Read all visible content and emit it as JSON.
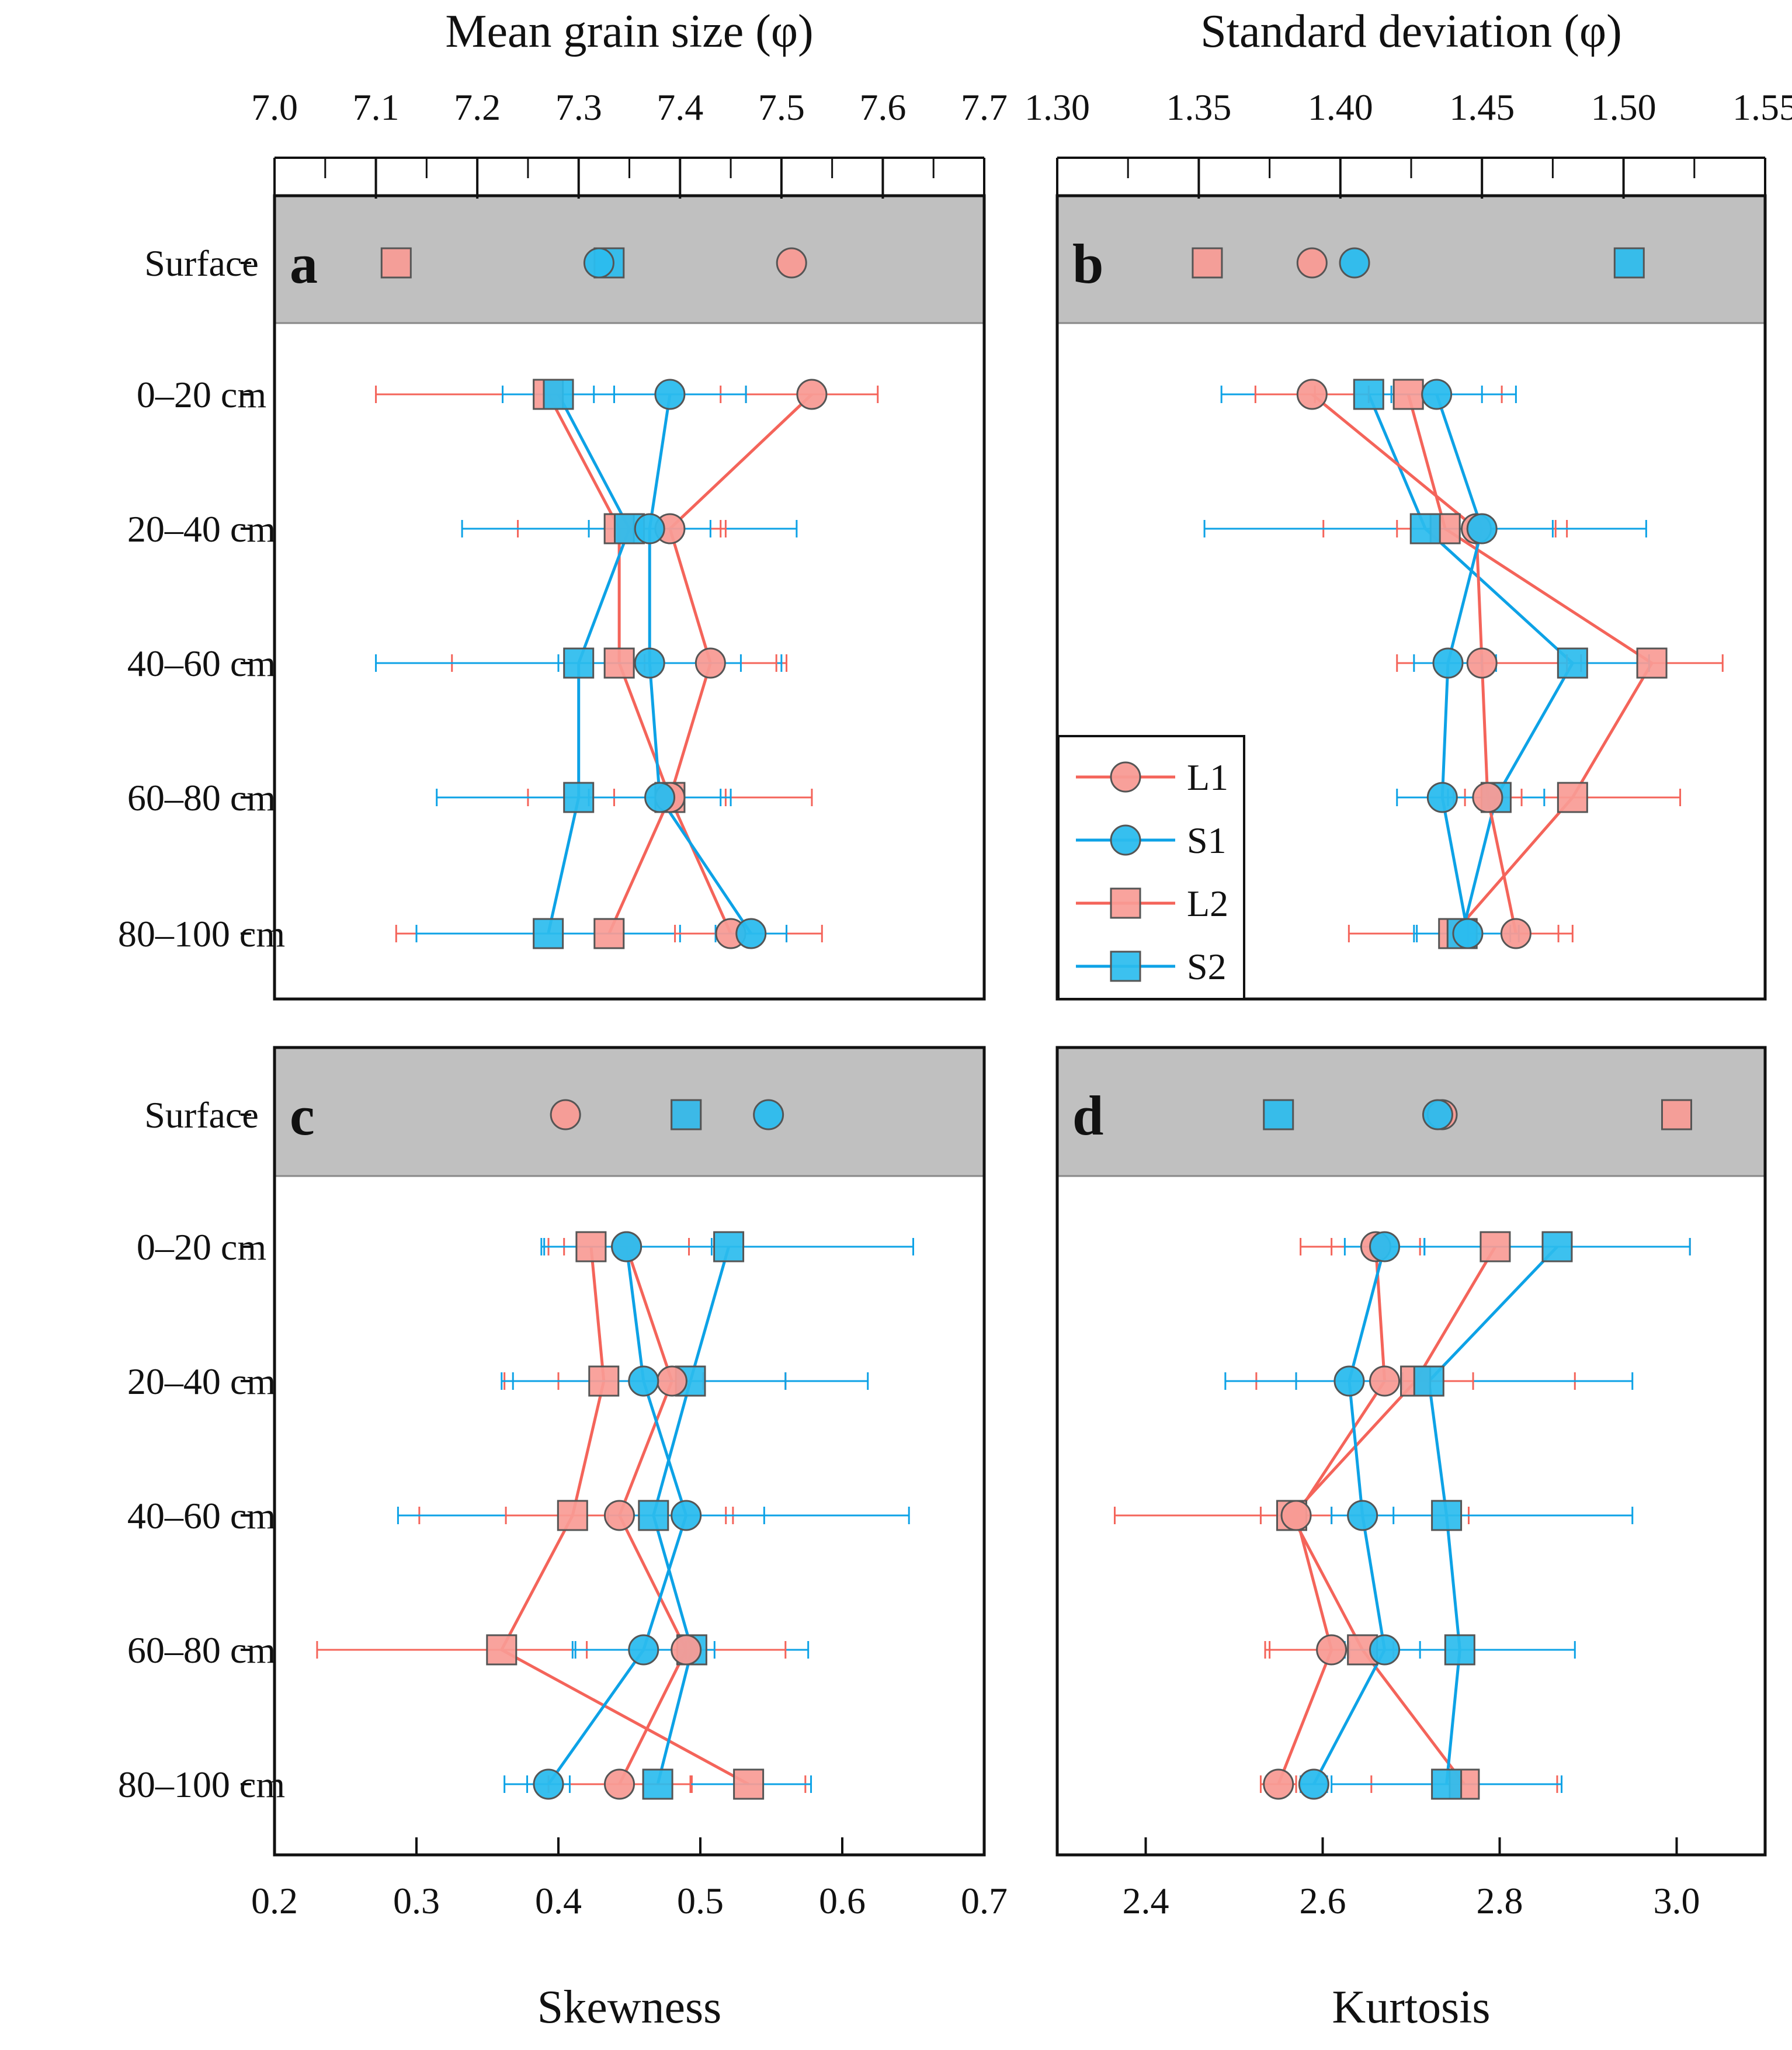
{
  "depth_labels": [
    "Surface",
    "0–20 cm",
    "20–40 cm",
    "40–60 cm",
    "60–80 cm",
    "80–100 cm"
  ],
  "colors": {
    "L": "#f4645a",
    "S": "#0da2e6",
    "L_fill": "#f89b95",
    "S_fill": "#2bbcee",
    "band": "#c0c0c0"
  },
  "legend": [
    {
      "name": "L1",
      "marker": "circle",
      "group": "L"
    },
    {
      "name": "S1",
      "marker": "circle",
      "group": "S"
    },
    {
      "name": "L2",
      "marker": "square",
      "group": "L"
    },
    {
      "name": "S2",
      "marker": "square",
      "group": "S"
    }
  ],
  "chart_data": [
    {
      "type": "line",
      "panel": "a",
      "xlabel": "Mean grain size (φ)",
      "axis_position": "top",
      "xlim": [
        7.0,
        7.7
      ],
      "xticks": [
        "7.0",
        "7.1",
        "7.2",
        "7.3",
        "7.4",
        "7.5",
        "7.6",
        "7.7"
      ],
      "surface": {
        "L1": 7.51,
        "S1": 7.32,
        "L2": 7.12,
        "S2": 7.33
      },
      "series": [
        {
          "name": "L1",
          "values": [
            7.53,
            7.39,
            7.43,
            7.39,
            7.45
          ],
          "err": [
            0.065,
            0.055,
            0.065,
            0.055,
            0.055
          ]
        },
        {
          "name": "S1",
          "values": [
            7.39,
            7.37,
            7.37,
            7.38,
            7.47
          ],
          "err": [
            0.075,
            0.06,
            0.09,
            0.07,
            0.035
          ]
        },
        {
          "name": "L2",
          "values": [
            7.27,
            7.34,
            7.34,
            7.39,
            7.33
          ],
          "err": [
            0.17,
            0.1,
            0.165,
            0.14,
            0.21
          ]
        },
        {
          "name": "S2",
          "values": [
            7.28,
            7.35,
            7.3,
            7.3,
            7.27
          ],
          "err": [
            0.055,
            0.165,
            0.2,
            0.14,
            0.13
          ]
        }
      ]
    },
    {
      "type": "line",
      "panel": "b",
      "xlabel": "Standard deviation (φ)",
      "axis_position": "top",
      "xlim": [
        1.3,
        1.55
      ],
      "xticks": [
        "1.30",
        "1.35",
        "1.40",
        "1.45",
        "1.50",
        "1.55"
      ],
      "surface": {
        "L1": 1.39,
        "S1": 1.405,
        "L2": 1.353,
        "S2": 1.502
      },
      "series": [
        {
          "name": "L1",
          "values": [
            1.39,
            1.448,
            1.45,
            1.452,
            1.462
          ],
          "err": [
            0.02,
            0.028,
            0.03,
            0.012,
            0.02
          ]
        },
        {
          "name": "S1",
          "values": [
            1.434,
            1.45,
            1.438,
            1.436,
            1.445
          ],
          "err": [
            0.016,
            0.025,
            0.012,
            0.016,
            0.018
          ]
        },
        {
          "name": "L2",
          "values": [
            1.424,
            1.437,
            1.51,
            1.482,
            1.44
          ],
          "err": [
            0.033,
            0.043,
            0.025,
            0.038,
            0.037
          ]
        },
        {
          "name": "S2",
          "values": [
            1.41,
            1.43,
            1.482,
            1.455,
            1.443
          ],
          "err": [
            0.052,
            0.078,
            0.027,
            0.017,
            0.017
          ]
        }
      ]
    },
    {
      "type": "line",
      "panel": "c",
      "xlabel": "Skewness",
      "axis_position": "bottom",
      "xlim": [
        0.2,
        0.7
      ],
      "xticks": [
        "0.2",
        "0.3",
        "0.4",
        "0.5",
        "0.6",
        "0.7"
      ],
      "surface": {
        "L1": 0.405,
        "S1": 0.548,
        "L2": 0.49,
        "S2": 0.49
      },
      "series": [
        {
          "name": "L1",
          "values": [
            0.448,
            0.48,
            0.443,
            0.49,
            0.443
          ],
          "err": [
            0.044,
            0.08,
            0.08,
            0.07,
            0.05
          ]
        },
        {
          "name": "S1",
          "values": [
            0.448,
            0.46,
            0.49,
            0.46,
            0.393
          ],
          "err": [
            0.06,
            0.1,
            0.055,
            0.05,
            0.015
          ]
        },
        {
          "name": "L2",
          "values": [
            0.423,
            0.432,
            0.41,
            0.36,
            0.534
          ],
          "err": [
            0.03,
            0.07,
            0.108,
            0.13,
            0.04
          ]
        },
        {
          "name": "S2",
          "values": [
            0.52,
            0.493,
            0.467,
            0.494,
            0.47
          ],
          "err": [
            0.13,
            0.125,
            0.18,
            0.082,
            0.108
          ]
        }
      ]
    },
    {
      "type": "line",
      "panel": "d",
      "xlabel": "Kurtosis",
      "axis_position": "bottom",
      "xlim": [
        2.3,
        3.1
      ],
      "xticks": [
        "2.4",
        "2.6",
        "2.8",
        "3.0"
      ],
      "surface": {
        "L1": 2.735,
        "S1": 2.73,
        "L2": 3.0,
        "S2": 2.55
      },
      "series": [
        {
          "name": "L1",
          "values": [
            2.66,
            2.67,
            2.57,
            2.61,
            2.55
          ],
          "err": [
            0.05,
            0.1,
            0.04,
            0.07,
            0.02
          ]
        },
        {
          "name": "S1",
          "values": [
            2.67,
            2.63,
            2.645,
            2.67,
            2.59
          ],
          "err": [
            0.045,
            0.06,
            0.035,
            0.04,
            0.015
          ]
        },
        {
          "name": "L2",
          "values": [
            2.795,
            2.705,
            2.565,
            2.645,
            2.76
          ],
          "err": [
            0.22,
            0.18,
            0.2,
            0.11,
            0.105
          ]
        },
        {
          "name": "S2",
          "values": [
            2.865,
            2.72,
            2.74,
            2.755,
            2.74
          ],
          "err": [
            0.15,
            0.23,
            0.21,
            0.13,
            0.13
          ]
        }
      ]
    }
  ]
}
